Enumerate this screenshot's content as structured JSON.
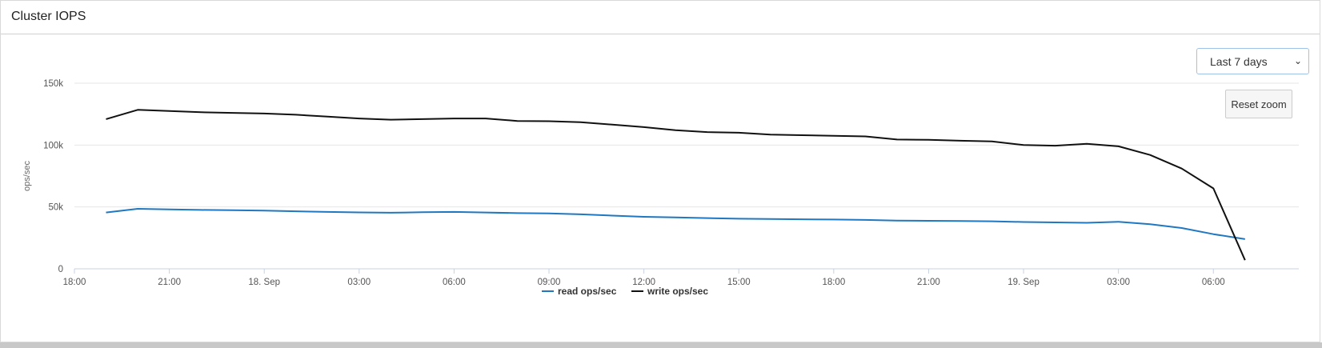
{
  "panel": {
    "title": "Cluster IOPS"
  },
  "controls": {
    "range_select": {
      "selected": "Last 7 days"
    },
    "reset_zoom_label": "Reset zoom"
  },
  "chart_data": {
    "type": "line",
    "title": "",
    "xlabel": "",
    "ylabel": "ops/sec",
    "x_tick_labels": [
      "18:00",
      "21:00",
      "18. Sep",
      "03:00",
      "06:00",
      "09:00",
      "12:00",
      "15:00",
      "18:00",
      "21:00",
      "19. Sep",
      "03:00",
      "06:00"
    ],
    "y_tick_labels": [
      "0",
      "50k",
      "100k",
      "150k"
    ],
    "ylim": [
      0,
      150000
    ],
    "x_range_hours": [
      -1,
      37.7
    ],
    "grid": true,
    "legend": "bottom-center",
    "x_hours": [
      0,
      1,
      2,
      3,
      4,
      5,
      6,
      7,
      8,
      9,
      10,
      11,
      12,
      13,
      14,
      15,
      16,
      17,
      18,
      19,
      20,
      21,
      22,
      23,
      24,
      25,
      26,
      27,
      28,
      29,
      30,
      31,
      32,
      33,
      34,
      35,
      36
    ],
    "series": [
      {
        "name": "read ops/sec",
        "color": "#1f78c1",
        "values": [
          45500,
          48500,
          48000,
          47600,
          47300,
          47000,
          46500,
          46000,
          45600,
          45300,
          45700,
          46000,
          45500,
          45000,
          44800,
          44000,
          43000,
          42000,
          41500,
          41000,
          40500,
          40300,
          40000,
          39800,
          39500,
          39000,
          38800,
          38600,
          38400,
          37800,
          37500,
          37200,
          38000,
          36000,
          33000,
          28000,
          24000
        ]
      },
      {
        "name": "write ops/sec",
        "color": "#111111",
        "values": [
          121000,
          128500,
          127500,
          126500,
          126000,
          125500,
          124500,
          123000,
          121500,
          120500,
          121000,
          121500,
          121500,
          119500,
          119300,
          118500,
          116500,
          114500,
          112000,
          110500,
          110000,
          108500,
          108000,
          107500,
          107000,
          104500,
          104300,
          103500,
          103000,
          100000,
          99500,
          101000,
          99000,
          92000,
          81000,
          65000,
          7000
        ]
      }
    ]
  }
}
